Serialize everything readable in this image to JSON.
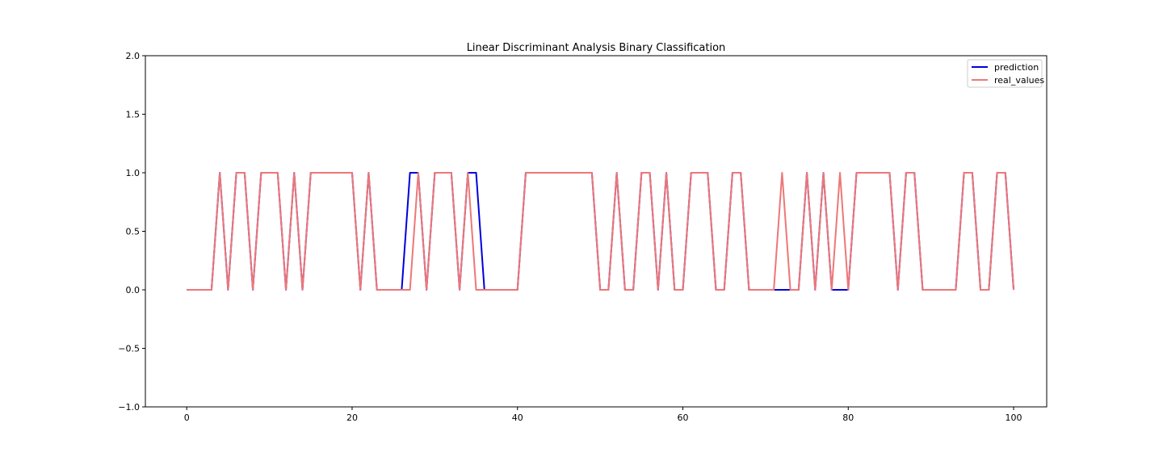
{
  "chart_data": {
    "type": "line",
    "title": "Linear Discriminant Analysis Binary Classification",
    "xlabel": "",
    "ylabel": "",
    "xlim": [
      -5,
      104
    ],
    "ylim": [
      -1.0,
      2.0
    ],
    "xticks": [
      0,
      20,
      40,
      60,
      80,
      100
    ],
    "xtick_labels": [
      "0",
      "20",
      "40",
      "60",
      "80",
      "100"
    ],
    "yticks": [
      -1.0,
      -0.5,
      0.0,
      0.5,
      1.0,
      1.5,
      2.0
    ],
    "ytick_labels": [
      "−1.0",
      "−0.5",
      "0.0",
      "0.5",
      "1.0",
      "1.5",
      "2.0"
    ],
    "grid": false,
    "legend_position": "top-right",
    "x_start": 0,
    "series": [
      {
        "name": "prediction",
        "color": "#0000dd",
        "values": [
          0,
          0,
          0,
          0,
          1,
          0,
          1,
          1,
          0,
          1,
          1,
          1,
          0,
          1,
          0,
          1,
          1,
          1,
          1,
          1,
          1,
          0,
          1,
          0,
          0,
          0,
          0,
          1,
          1,
          0,
          1,
          1,
          1,
          0,
          1,
          1,
          0,
          0,
          0,
          0,
          0,
          1,
          1,
          1,
          1,
          1,
          1,
          1,
          1,
          1,
          0,
          0,
          1,
          0,
          0,
          1,
          1,
          0,
          1,
          0,
          0,
          1,
          1,
          1,
          0,
          0,
          1,
          1,
          0,
          0,
          0,
          0,
          0,
          0,
          0,
          1,
          0,
          1,
          0,
          0,
          0,
          1,
          1,
          1,
          1,
          1,
          0,
          1,
          1,
          0,
          0,
          0,
          0,
          0,
          1,
          1,
          0,
          0,
          1,
          1,
          0
        ]
      },
      {
        "name": "real_values",
        "color": "#ee7777",
        "values": [
          0,
          0,
          0,
          0,
          1,
          0,
          1,
          1,
          0,
          1,
          1,
          1,
          0,
          1,
          0,
          1,
          1,
          1,
          1,
          1,
          1,
          0,
          1,
          0,
          0,
          0,
          0,
          0,
          1,
          0,
          1,
          1,
          1,
          0,
          1,
          0,
          0,
          0,
          0,
          0,
          0,
          1,
          1,
          1,
          1,
          1,
          1,
          1,
          1,
          1,
          0,
          0,
          1,
          0,
          0,
          1,
          1,
          0,
          1,
          0,
          0,
          1,
          1,
          1,
          0,
          0,
          1,
          1,
          0,
          0,
          0,
          0,
          1,
          0,
          0,
          1,
          0,
          1,
          0,
          1,
          0,
          1,
          1,
          1,
          1,
          1,
          0,
          1,
          1,
          0,
          0,
          0,
          0,
          0,
          1,
          1,
          0,
          0,
          1,
          1,
          0
        ]
      }
    ]
  }
}
